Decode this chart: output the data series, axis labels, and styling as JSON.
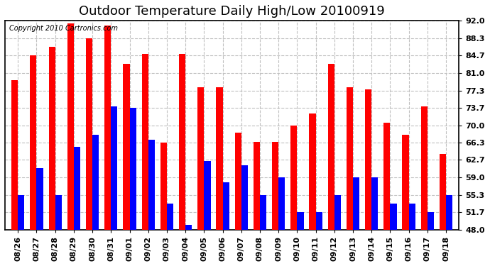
{
  "title": "Outdoor Temperature Daily High/Low 20100919",
  "copyright": "Copyright 2010 Cartronics.com",
  "dates": [
    "08/26",
    "08/27",
    "08/28",
    "08/29",
    "08/30",
    "08/31",
    "09/01",
    "09/02",
    "09/03",
    "09/04",
    "09/05",
    "09/06",
    "09/07",
    "09/08",
    "09/09",
    "09/10",
    "09/11",
    "09/12",
    "09/13",
    "09/14",
    "09/15",
    "09/16",
    "09/17",
    "09/18"
  ],
  "highs": [
    79.5,
    84.7,
    86.5,
    91.5,
    88.3,
    91.0,
    83.0,
    85.0,
    66.3,
    85.0,
    78.0,
    78.0,
    68.5,
    66.5,
    66.5,
    70.0,
    72.5,
    83.0,
    78.0,
    77.5,
    70.5,
    68.0,
    74.0,
    64.0
  ],
  "lows": [
    55.3,
    61.0,
    55.3,
    65.5,
    68.0,
    74.0,
    73.7,
    67.0,
    53.5,
    49.0,
    62.5,
    58.0,
    61.5,
    55.3,
    59.0,
    51.7,
    51.7,
    55.3,
    59.0,
    59.0,
    53.5,
    53.5,
    51.7,
    55.3
  ],
  "high_color": "#ff0000",
  "low_color": "#0000ff",
  "background_color": "#ffffff",
  "grid_color": "#c0c0c0",
  "yticks": [
    48.0,
    51.7,
    55.3,
    59.0,
    62.7,
    66.3,
    70.0,
    73.7,
    77.3,
    81.0,
    84.7,
    88.3,
    92.0
  ],
  "ymin": 48.0,
  "ymax": 92.0,
  "bar_width": 0.35,
  "title_fontsize": 13,
  "tick_fontsize": 8,
  "copyright_fontsize": 7
}
